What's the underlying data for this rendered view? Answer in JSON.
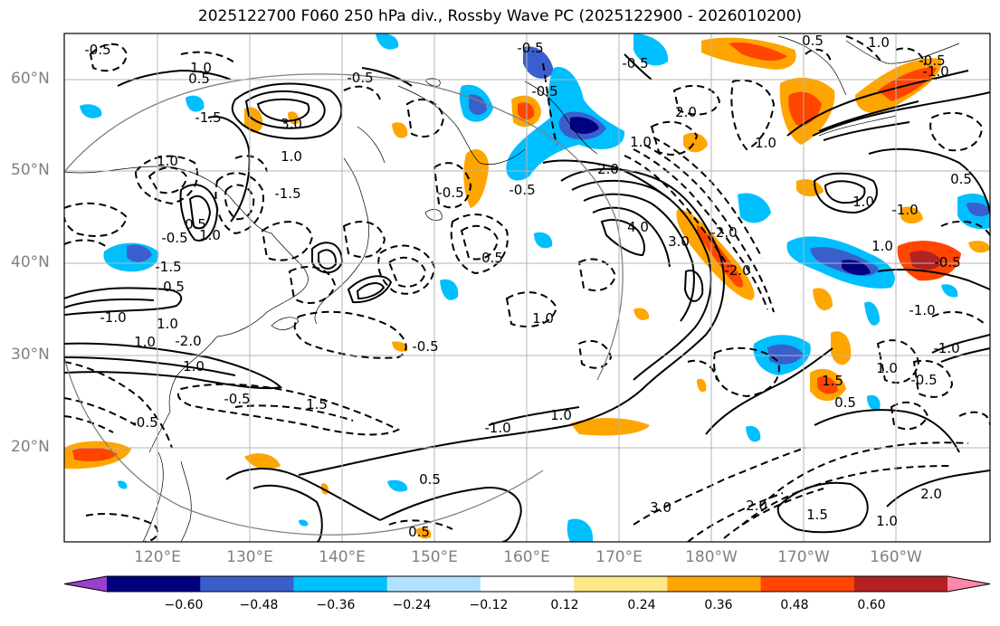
{
  "title": "2025122700 F060 250 hPa div., Rossby Wave PC (2025122900 - 2026010200)",
  "lat_labels": [
    "60°N",
    "50°N",
    "40°N",
    "30°N",
    "20°N"
  ],
  "lon_labels": [
    "120°E",
    "130°E",
    "140°E",
    "150°E",
    "160°E",
    "170°E",
    "180°W",
    "170°W",
    "160°W"
  ],
  "colorbar": {
    "ticks": [
      "−0.60",
      "−0.48",
      "−0.36",
      "−0.24",
      "−0.12",
      "0.12",
      "0.24",
      "0.36",
      "0.48",
      "0.60"
    ],
    "colors": [
      "#9b3fd1",
      "#000080",
      "#3a5fcd",
      "#00bfff",
      "#b0e2ff",
      "#ffffff",
      "#ffe88a",
      "#ffa500",
      "#ff4500",
      "#b22222",
      "#ff88aa"
    ]
  },
  "contour_labels": [
    "-0.5",
    "1.0",
    "0.5",
    "-0.5",
    "-1.5",
    "3.0",
    "1.0",
    "-1.5",
    "1.0",
    "0.5",
    "-0.5",
    "-1.5",
    "1.0",
    "0.5",
    "1.0",
    "-1.0",
    "1.0",
    "-2.0",
    "1.0",
    "-0.5",
    "1.5",
    "-0.5",
    "-1.0",
    "0.5",
    "1.0",
    "-0.5",
    "0.5",
    "-0.5",
    "-0.5",
    "2.0",
    "4.0",
    "3.0",
    "2.0",
    "1.0",
    "-0.5",
    "-2.0",
    "-2.0",
    "1.0",
    "0.5",
    "-0.5",
    "1.5",
    "2.0",
    "1.0",
    "3.0",
    "-1.0",
    "1.0",
    "2.0",
    "0.5",
    "-0.5",
    "-1.0",
    "1.0",
    "0.5",
    "-0.5",
    "1.0",
    "-1.0",
    "1.0",
    "-0.5",
    "-0.5",
    "-1.0",
    "1.0",
    "1.5",
    "0.5"
  ]
}
